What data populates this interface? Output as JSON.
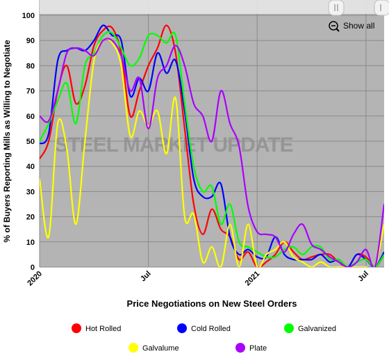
{
  "chart_data": {
    "type": "line",
    "title": "Price Negotiations on New Steel Orders",
    "y_label": "% of Buyers Reporting Mills as Willing to Negotiate",
    "watermark": "STEEL MARKET UPDATE",
    "button": "Show all",
    "x": [
      0,
      0.5,
      1,
      1.5,
      2,
      2.5,
      3,
      3.5,
      4,
      4.5,
      5,
      5.5,
      6,
      6.5,
      7,
      7.5,
      8,
      8.5,
      9,
      9.5,
      10,
      10.5,
      11,
      11.5,
      12,
      12.5,
      13,
      13.5,
      14,
      14.5,
      15,
      15.5,
      16,
      16.5,
      17,
      17.5,
      18,
      18.5,
      19
    ],
    "xlim": [
      0,
      19
    ],
    "xticks": [
      {
        "value": 0,
        "label": "2020"
      },
      {
        "value": 6,
        "label": "Jul"
      },
      {
        "value": 12,
        "label": "2021"
      },
      {
        "value": 18,
        "label": "Jul"
      }
    ],
    "ylim": [
      0,
      100
    ],
    "yticks": [
      0,
      10,
      20,
      30,
      40,
      50,
      60,
      70,
      80,
      90,
      100
    ],
    "grid": true,
    "series": [
      {
        "name": "Hot Rolled",
        "color": "#ff0000",
        "values": [
          43,
          50,
          70,
          80,
          65,
          72,
          88,
          94,
          95,
          85,
          60,
          70,
          80,
          87,
          96,
          85,
          55,
          25,
          13,
          23,
          15,
          12,
          3,
          6,
          0,
          2,
          5,
          10,
          6,
          3,
          4,
          5,
          5,
          2,
          0,
          5,
          4,
          0,
          5
        ]
      },
      {
        "name": "Cold Rolled",
        "color": "#0000ff",
        "values": [
          49,
          53,
          82,
          86,
          87,
          86,
          90,
          96,
          92,
          90,
          68,
          75,
          70,
          85,
          77,
          82,
          62,
          35,
          28,
          28,
          33,
          12,
          5,
          7,
          4,
          4,
          12,
          5,
          3,
          3,
          3,
          5,
          2,
          3,
          0,
          5,
          3,
          0,
          6
        ]
      },
      {
        "name": "Galvanized",
        "color": "#00ff00",
        "values": [
          50,
          57,
          66,
          73,
          57,
          80,
          85,
          92,
          93,
          87,
          80,
          83,
          92,
          92,
          89,
          92,
          65,
          40,
          30,
          32,
          17,
          25,
          10,
          8,
          6,
          4,
          4,
          7,
          8,
          5,
          8,
          8,
          3,
          3,
          0,
          2,
          3,
          0,
          5
        ]
      },
      {
        "name": "Galvalume",
        "color": "#ffff00",
        "values": [
          35,
          12,
          57,
          47,
          17,
          50,
          82,
          90,
          89,
          80,
          52,
          62,
          56,
          62,
          45,
          67,
          20,
          21,
          2,
          8,
          0,
          17,
          0,
          17,
          0,
          5,
          7,
          10,
          4,
          2,
          0,
          2,
          0,
          0,
          0,
          0,
          0,
          0,
          17
        ]
      },
      {
        "name": "Plate",
        "color": "#aa00ff",
        "values": [
          60,
          58,
          70,
          85,
          87,
          86,
          84,
          90,
          90,
          84,
          70,
          75,
          55,
          75,
          80,
          88,
          80,
          65,
          60,
          50,
          70,
          57,
          48,
          24,
          14,
          13,
          12,
          6,
          13,
          17,
          9,
          7,
          4,
          2,
          0,
          2,
          7,
          0,
          25
        ]
      }
    ]
  }
}
